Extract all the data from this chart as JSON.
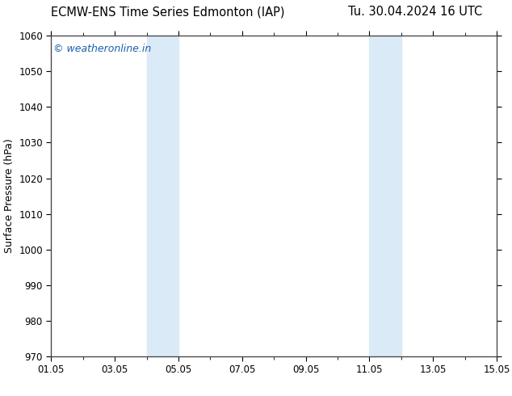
{
  "title_left": "ECMW-ENS Time Series Edmonton (IAP)",
  "title_right": "Tu. 30.04.2024 16 UTC",
  "ylabel": "Surface Pressure (hPa)",
  "ylim": [
    970,
    1060
  ],
  "yticks": [
    970,
    980,
    990,
    1000,
    1010,
    1020,
    1030,
    1040,
    1050,
    1060
  ],
  "xlim_start": 0,
  "xlim_end": 14,
  "xtick_labels": [
    "01.05",
    "03.05",
    "05.05",
    "07.05",
    "09.05",
    "11.05",
    "13.05",
    "15.05"
  ],
  "xtick_positions": [
    0,
    2,
    4,
    6,
    8,
    10,
    12,
    14
  ],
  "shaded_regions": [
    {
      "xmin": 3.0,
      "xmax": 4.0
    },
    {
      "xmin": 10.0,
      "xmax": 11.0
    }
  ],
  "shaded_color": "#daeaf6",
  "watermark": "© weatheronline.in",
  "watermark_color": "#1a5faa",
  "background_color": "#ffffff",
  "plot_background": "#ffffff",
  "title_fontsize": 10.5,
  "axis_label_fontsize": 9,
  "tick_fontsize": 8.5,
  "watermark_fontsize": 9
}
